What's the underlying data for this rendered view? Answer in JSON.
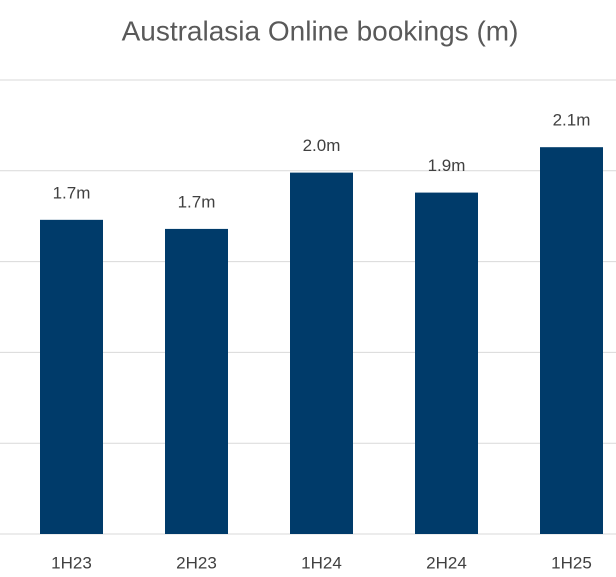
{
  "chart_data": {
    "type": "bar",
    "title": "Australasia Online bookings (m)",
    "categories": [
      "1H23",
      "2H23",
      "1H24",
      "2H24",
      "1H25"
    ],
    "values": [
      1.73,
      1.68,
      1.99,
      1.88,
      2.13
    ],
    "value_labels": [
      "1.7m",
      "1.7m",
      "2.0m",
      "1.9m",
      "2.1m"
    ],
    "color": "#003b6a",
    "ylim": [
      0,
      2.5
    ],
    "yticks": [
      0,
      0.5,
      1,
      1.5,
      2,
      2.5
    ],
    "grid": true
  }
}
